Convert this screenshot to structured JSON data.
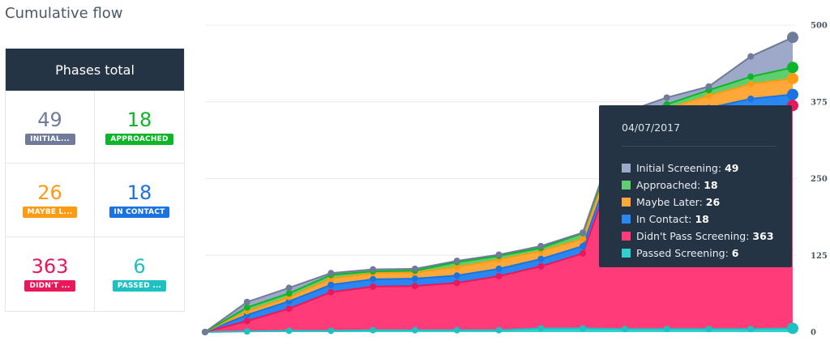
{
  "page_title": "Cumulative flow",
  "phases_panel": {
    "title": "Phases total",
    "items": [
      {
        "value": "49",
        "badge": "INITIAL...",
        "color": "#6f7b99"
      },
      {
        "value": "18",
        "badge": "APPROACHED",
        "color": "#0fb528"
      },
      {
        "value": "26",
        "badge": "MAYBE L...",
        "color": "#ff9a12"
      },
      {
        "value": "18",
        "badge": "IN CONTACT",
        "color": "#1a73e0"
      },
      {
        "value": "363",
        "badge": "DIDN'T ...",
        "color": "#e8185a"
      },
      {
        "value": "6",
        "badge": "PASSED ...",
        "color": "#1dc1c1"
      }
    ]
  },
  "tooltip": {
    "date": "04/07/2017",
    "rows": [
      {
        "label": "Initial Screening:",
        "value": "49",
        "color": "#9ea8c9"
      },
      {
        "label": "Approached:",
        "value": "18",
        "color": "#5fce6e"
      },
      {
        "label": "Maybe Later:",
        "value": "26",
        "color": "#ffa83a"
      },
      {
        "label": "In Contact:",
        "value": "18",
        "color": "#2a86f0"
      },
      {
        "label": "Didn't Pass Screening:",
        "value": "363",
        "color": "#ff3b7a"
      },
      {
        "label": "Passed Screening:",
        "value": "6",
        "color": "#2fd1cf"
      }
    ]
  },
  "chart_data": {
    "type": "area",
    "stacked": true,
    "ylim": [
      0,
      500
    ],
    "yticks": [
      "0",
      "125",
      "250",
      "375",
      "500"
    ],
    "grid": true,
    "points_count": 15,
    "series": [
      {
        "name": "Passed Screening",
        "fill": "#2fd1cf",
        "dot": "#1dc1c1",
        "values": [
          0,
          1,
          2,
          2,
          3,
          3,
          3,
          3,
          6,
          6,
          5,
          5,
          5,
          5,
          6
        ]
      },
      {
        "name": "Didn't Pass Screening",
        "fill": "#ff3b7a",
        "dot": "#e8185a",
        "values": [
          0,
          17,
          36,
          63,
          71,
          72,
          77,
          88,
          101,
          122,
          315,
          329,
          345,
          358,
          363
        ]
      },
      {
        "name": "In Contact",
        "fill": "#2a86f0",
        "dot": "#1a73e0",
        "values": [
          0,
          10,
          12,
          12,
          12,
          12,
          12,
          12,
          12,
          12,
          12,
          12,
          15,
          17,
          18
        ]
      },
      {
        "name": "Maybe Later",
        "fill": "#ffa83a",
        "dot": "#ff9a12",
        "values": [
          0,
          6,
          7,
          10,
          10,
          10,
          14,
          15,
          13,
          12,
          14,
          18,
          20,
          24,
          26
        ]
      },
      {
        "name": "Approached",
        "fill": "#5fce6e",
        "dot": "#0fb528",
        "values": [
          0,
          6,
          6,
          6,
          3,
          3,
          8,
          6,
          5,
          9,
          4,
          7,
          9,
          12,
          18
        ]
      },
      {
        "name": "Initial Screening",
        "fill": "#9ea8c9",
        "dot": "#6f7b99",
        "values": [
          0,
          9,
          9,
          3,
          3,
          3,
          2,
          2,
          3,
          1,
          8,
          11,
          6,
          33,
          49
        ]
      }
    ]
  }
}
